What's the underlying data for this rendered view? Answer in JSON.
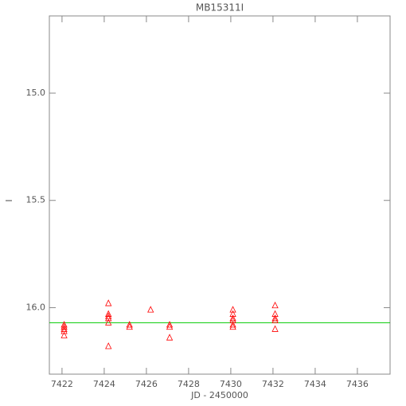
{
  "chart_data": {
    "type": "scatter",
    "title": "MB15311I",
    "x_label": "JD - 2450000",
    "y_label": "I",
    "series": [
      {
        "name": "I",
        "color": "#ff0000",
        "marker": "triangle",
        "x": [
          7422.1,
          7422.1,
          7422.1,
          7422.1,
          7422.1,
          7424.2,
          7424.2,
          7424.2,
          7424.2,
          7424.2,
          7424.2,
          7425.2,
          7425.2,
          7426.2,
          7427.1,
          7427.1,
          7427.1,
          7430.1,
          7430.1,
          7430.1,
          7430.1,
          7430.1,
          7430.1,
          7432.1,
          7432.1,
          7432.1,
          7432.1,
          7432.1
        ],
        "values": [
          16.08,
          16.09,
          16.1,
          16.11,
          16.13,
          15.98,
          16.03,
          16.04,
          16.05,
          16.07,
          16.18,
          16.08,
          16.09,
          16.01,
          16.08,
          16.09,
          16.14,
          16.01,
          16.03,
          16.05,
          16.06,
          16.08,
          16.09,
          15.99,
          16.03,
          16.05,
          16.06,
          16.1
        ]
      }
    ],
    "reference_line": {
      "value": 16.07,
      "color": "#00cc00"
    },
    "xlim": [
      7421.4,
      7437.55
    ],
    "xticks": [
      7422,
      7424,
      7426,
      7428,
      7430,
      7432,
      7434,
      7436
    ],
    "ylim": [
      16.31,
      14.64
    ],
    "yticks": [
      {
        "value": 15,
        "label": "15.0"
      },
      {
        "value": 15.5,
        "label": "15.5"
      },
      {
        "value": 16,
        "label": "16.0"
      }
    ]
  }
}
